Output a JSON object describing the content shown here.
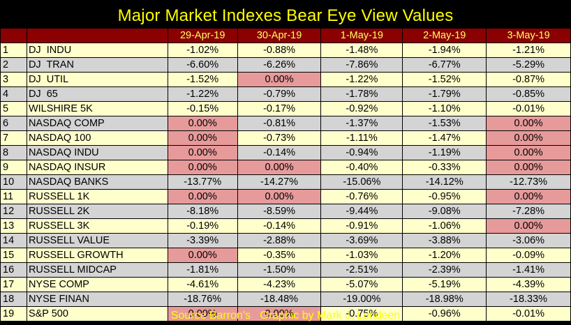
{
  "title": "Major Market Indexes Bear Eye View Values",
  "columns": [
    "29-Apr-19",
    "30-Apr-19",
    "1-May-19",
    "2-May-19",
    "3-May-19"
  ],
  "rows": [
    {
      "num": "1",
      "name": "DJ  INDU",
      "values": [
        "-1.02%",
        "-0.88%",
        "-1.48%",
        "-1.94%",
        "-1.21%"
      ]
    },
    {
      "num": "2",
      "name": "DJ  TRAN",
      "values": [
        "-6.60%",
        "-6.26%",
        "-7.86%",
        "-6.77%",
        "-5.29%"
      ]
    },
    {
      "num": "3",
      "name": "DJ  UTIL",
      "values": [
        "-1.52%",
        "0.00%",
        "-1.22%",
        "-1.52%",
        "-0.87%"
      ]
    },
    {
      "num": "4",
      "name": "DJ  65",
      "values": [
        "-1.22%",
        "-0.79%",
        "-1.78%",
        "-1.79%",
        "-0.85%"
      ]
    },
    {
      "num": "5",
      "name": "WILSHIRE 5K",
      "values": [
        "-0.15%",
        "-0.17%",
        "-0.92%",
        "-1.10%",
        "-0.01%"
      ]
    },
    {
      "num": "6",
      "name": "NASDAQ COMP",
      "values": [
        "0.00%",
        "-0.81%",
        "-1.37%",
        "-1.53%",
        "0.00%"
      ]
    },
    {
      "num": "7",
      "name": "NASDAQ 100",
      "values": [
        "0.00%",
        "-0.73%",
        "-1.11%",
        "-1.47%",
        "0.00%"
      ]
    },
    {
      "num": "8",
      "name": "NASDAQ INDU",
      "values": [
        "0.00%",
        "-0.14%",
        "-0.94%",
        "-1.19%",
        "0.00%"
      ]
    },
    {
      "num": "9",
      "name": "NASDAQ INSUR",
      "values": [
        "0.00%",
        "0.00%",
        "-0.40%",
        "-0.33%",
        "0.00%"
      ]
    },
    {
      "num": "10",
      "name": "NASDAQ BANKS",
      "values": [
        "-13.77%",
        "-14.27%",
        "-15.06%",
        "-14.12%",
        "-12.73%"
      ]
    },
    {
      "num": "11",
      "name": "RUSSELL 1K",
      "values": [
        "0.00%",
        "0.00%",
        "-0.76%",
        "-0.95%",
        "0.00%"
      ]
    },
    {
      "num": "12",
      "name": "RUSSELL 2K",
      "values": [
        "-8.18%",
        "-8.59%",
        "-9.44%",
        "-9.08%",
        "-7.28%"
      ]
    },
    {
      "num": "13",
      "name": "RUSSELL 3K",
      "values": [
        "-0.19%",
        "-0.14%",
        "-0.91%",
        "-1.06%",
        "0.00%"
      ]
    },
    {
      "num": "14",
      "name": "RUSSELL VALUE",
      "values": [
        "-3.39%",
        "-2.88%",
        "-3.69%",
        "-3.88%",
        "-3.06%"
      ]
    },
    {
      "num": "15",
      "name": "RUSSELL GROWTH",
      "values": [
        "0.00%",
        "-0.35%",
        "-1.03%",
        "-1.20%",
        "-0.09%"
      ]
    },
    {
      "num": "16",
      "name": "RUSSELL MIDCAP",
      "values": [
        "-1.81%",
        "-1.50%",
        "-2.51%",
        "-2.39%",
        "-1.41%"
      ]
    },
    {
      "num": "17",
      "name": "NYSE COMP",
      "values": [
        "-4.61%",
        "-4.23%",
        "-5.07%",
        "-5.19%",
        "-4.39%"
      ]
    },
    {
      "num": "18",
      "name": "NYSE FINAN",
      "values": [
        "-18.76%",
        "-18.48%",
        "-19.00%",
        "-18.98%",
        "-18.33%"
      ]
    },
    {
      "num": "19",
      "name": "S&P 500",
      "values": [
        "0.00%",
        "0.00%",
        "-0.75%",
        "-0.96%",
        "-0.01%"
      ]
    }
  ],
  "footer": "Source Barron's   Graphic by Mark J. Lundeen"
}
